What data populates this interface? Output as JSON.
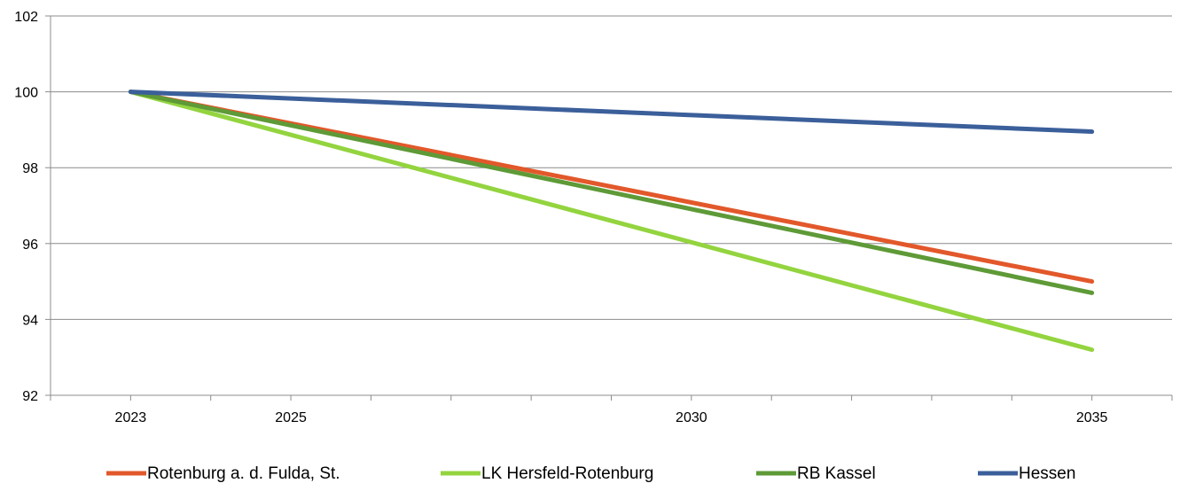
{
  "chart_data": {
    "type": "line",
    "x": [
      2023,
      2035
    ],
    "x_ticks_labeled": [
      "2023",
      "2025",
      "2030",
      "2035"
    ],
    "x_tick_values": [
      2023,
      2025,
      2030,
      2035
    ],
    "xlim": [
      2022,
      2036
    ],
    "ylim": [
      92,
      102
    ],
    "y_ticks": [
      92,
      94,
      96,
      98,
      100,
      102
    ],
    "y_tick_labels": [
      "92",
      "94",
      "96",
      "98",
      "100",
      "102"
    ],
    "grid": "horizontal",
    "legend_position": "bottom",
    "series": [
      {
        "name": "Rotenburg a. d. Fulda, St.",
        "color": "#e2582b",
        "points": [
          [
            2023,
            100
          ],
          [
            2035,
            95.0
          ]
        ]
      },
      {
        "name": "LK Hersfeld-Rotenburg",
        "color": "#93d43f",
        "points": [
          [
            2023,
            100
          ],
          [
            2035,
            93.2
          ]
        ]
      },
      {
        "name": "RB Kassel",
        "color": "#5e9a37",
        "points": [
          [
            2023,
            100
          ],
          [
            2035,
            94.7
          ]
        ]
      },
      {
        "name": "Hessen",
        "color": "#3b5f9a",
        "points": [
          [
            2023,
            100
          ],
          [
            2035,
            98.95
          ]
        ]
      }
    ]
  }
}
